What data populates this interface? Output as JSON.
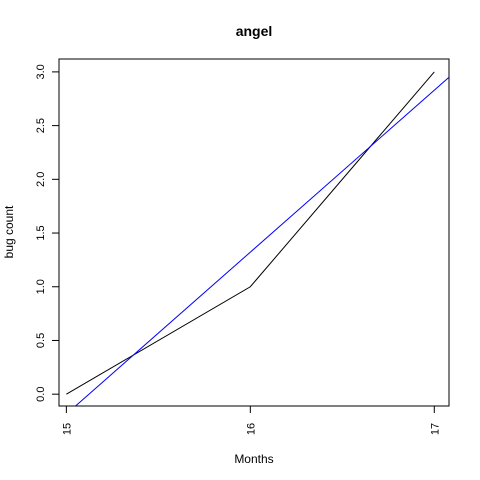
{
  "chart_data": {
    "type": "line",
    "title": "angel",
    "xlabel": "Months",
    "ylabel": "bug count",
    "xlim": [
      14.96,
      17.08
    ],
    "ylim": [
      -0.11,
      3.12
    ],
    "x_ticks": [
      15,
      16,
      17
    ],
    "x_tick_labels": [
      "15",
      "16",
      "17"
    ],
    "y_ticks": [
      0.0,
      0.5,
      1.0,
      1.5,
      2.0,
      2.5,
      3.0
    ],
    "y_tick_labels": [
      "0.0",
      "0.5",
      "1.0",
      "1.5",
      "2.0",
      "2.5",
      "3.0"
    ],
    "grid": false,
    "legend": "none",
    "series": [
      {
        "color": "#000000",
        "x": [
          15,
          16,
          17
        ],
        "y": [
          0,
          1,
          3
        ]
      },
      {
        "color": "#0000ff",
        "x": [
          15.05,
          17.08
        ],
        "y": [
          -0.11,
          2.95
        ]
      }
    ]
  }
}
